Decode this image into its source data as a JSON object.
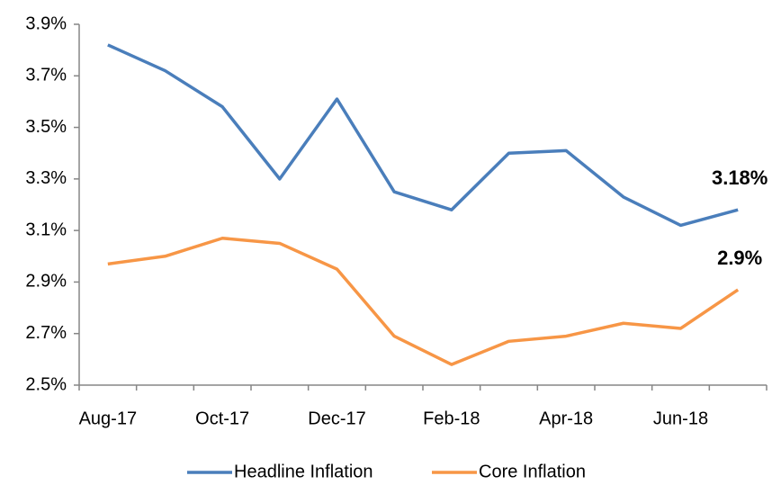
{
  "chart_data": {
    "type": "line",
    "categories": [
      "Aug-17",
      null,
      "Oct-17",
      null,
      "Dec-17",
      null,
      "Feb-18",
      null,
      "Apr-18",
      null,
      "Jun-18",
      null
    ],
    "series": [
      {
        "name": "Headline Inflation",
        "color": "#4a7ebb",
        "values": [
          3.82,
          3.72,
          3.58,
          3.3,
          3.61,
          3.25,
          3.18,
          3.4,
          3.41,
          3.23,
          3.12,
          3.18
        ],
        "value_labels": [
          null,
          null,
          null,
          null,
          null,
          null,
          null,
          null,
          null,
          null,
          null,
          "3.18%"
        ]
      },
      {
        "name": "Core Inflation",
        "color": "#f79646",
        "values": [
          2.97,
          3.0,
          3.07,
          3.05,
          2.95,
          2.69,
          2.58,
          2.67,
          2.69,
          2.74,
          2.72,
          2.87
        ],
        "value_labels": [
          null,
          null,
          null,
          null,
          null,
          null,
          null,
          null,
          null,
          null,
          null,
          "2.9%"
        ]
      }
    ],
    "ylim": [
      2.5,
      3.9
    ],
    "yticks": [
      {
        "value": 2.5,
        "label": "2.5%"
      },
      {
        "value": 2.7,
        "label": "2.7%"
      },
      {
        "value": 2.9,
        "label": "2.9%"
      },
      {
        "value": 3.1,
        "label": "3.1%"
      },
      {
        "value": 3.3,
        "label": "3.3%"
      },
      {
        "value": 3.5,
        "label": "3.5%"
      },
      {
        "value": 3.7,
        "label": "3.7%"
      },
      {
        "value": 3.9,
        "label": "3.9%"
      }
    ],
    "grid": false,
    "legend": "bottom"
  }
}
